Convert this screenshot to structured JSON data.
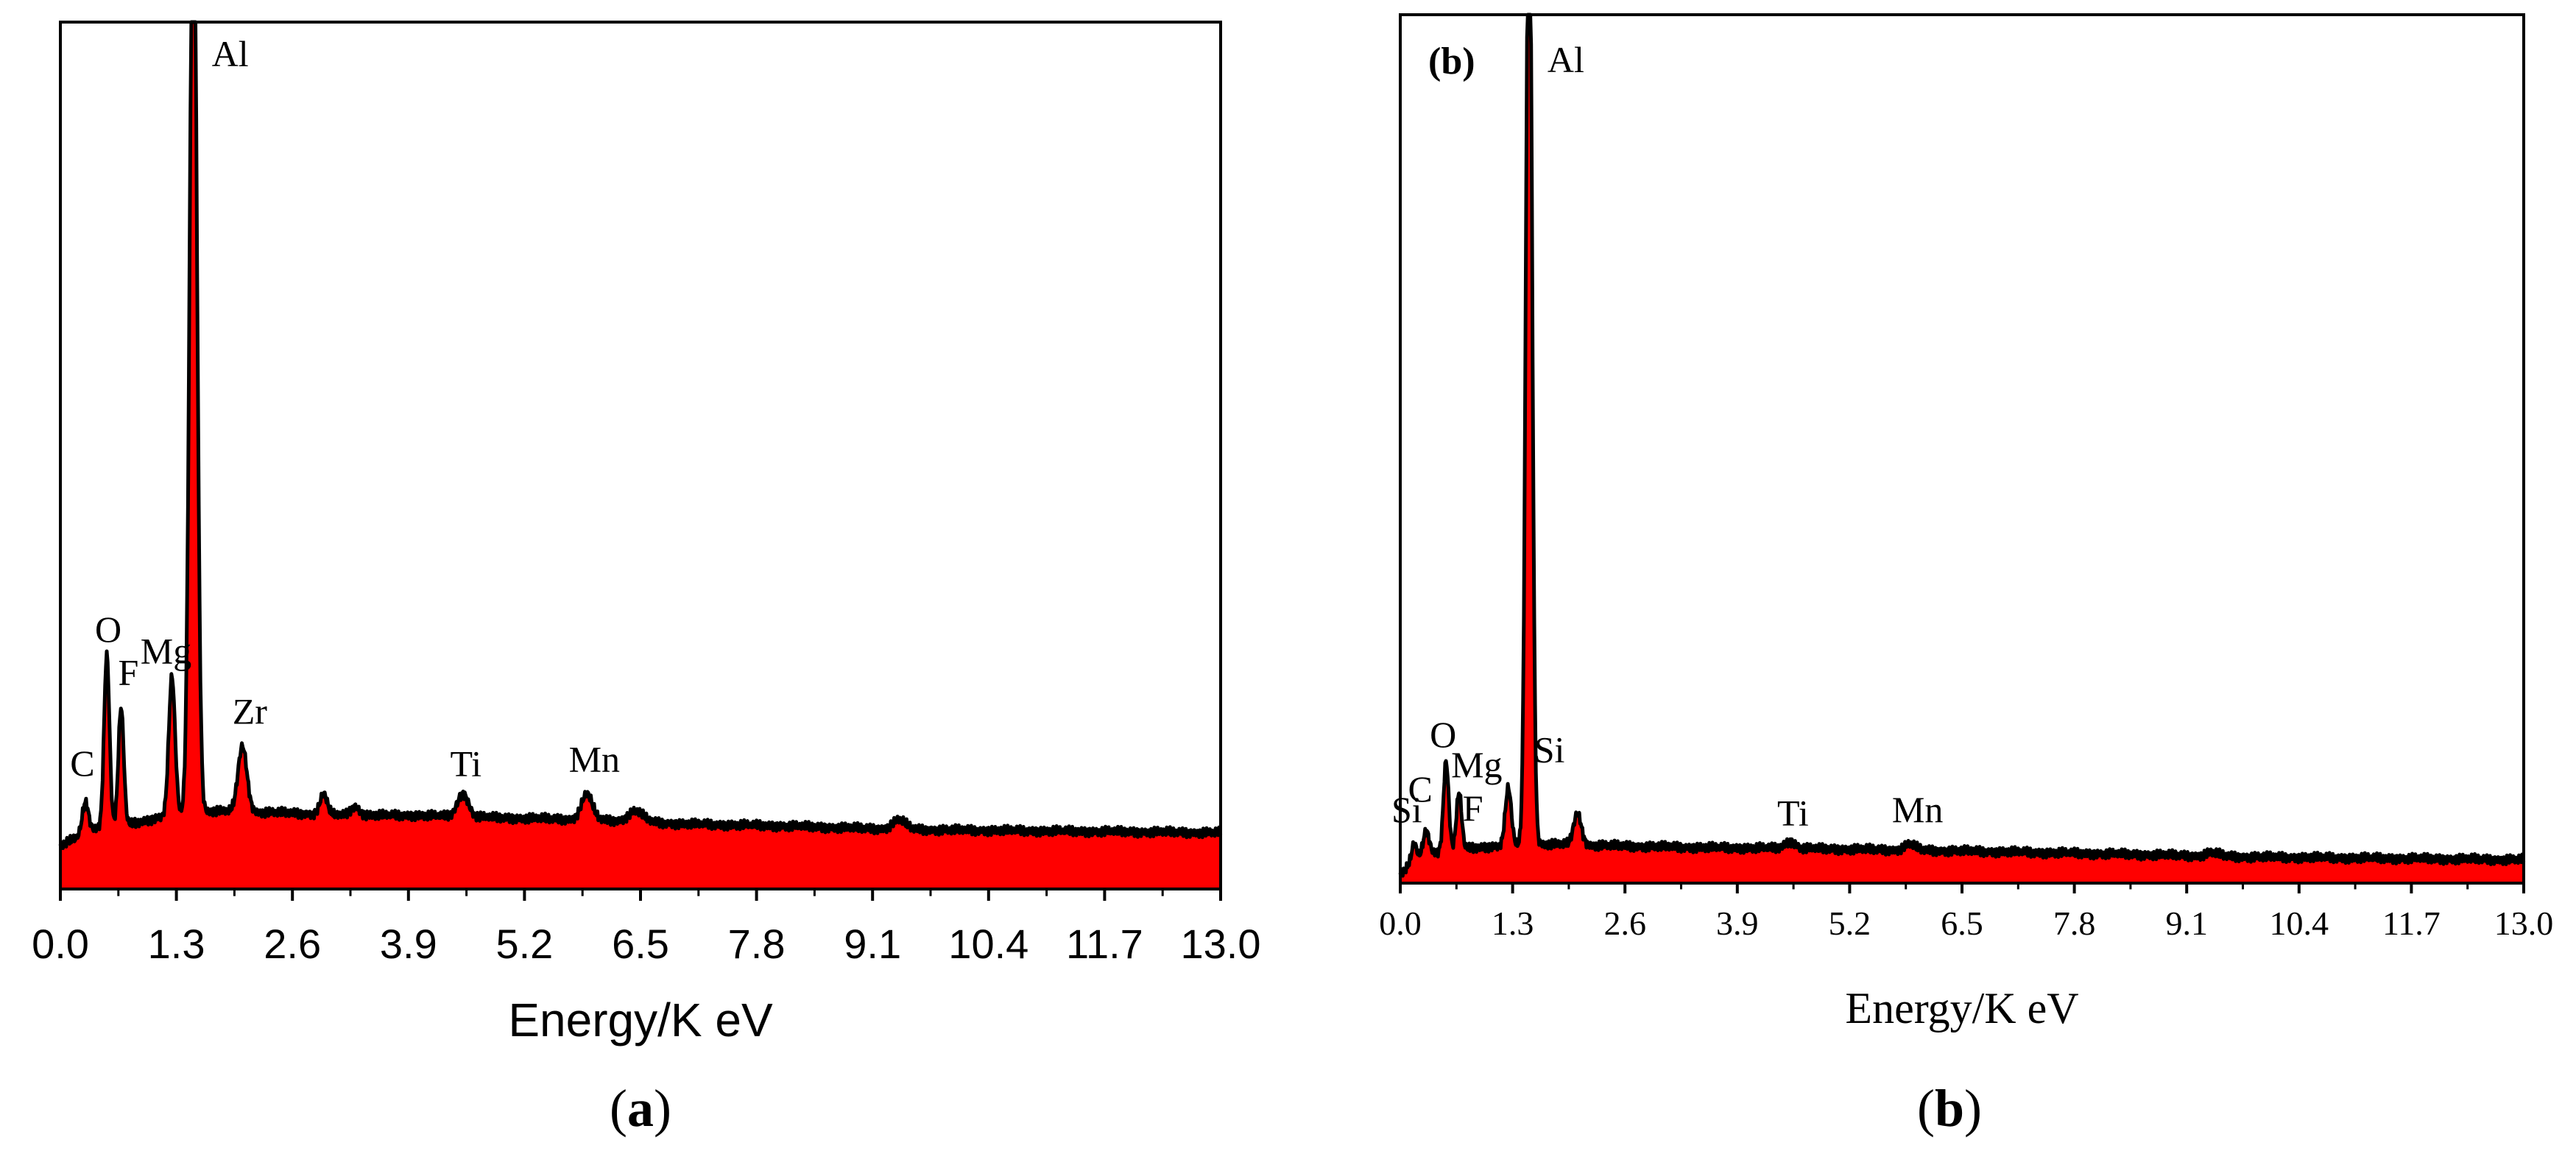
{
  "colors": {
    "fill": "#ff0000",
    "line": "#000000",
    "background": "#ffffff"
  },
  "chart_data": [
    {
      "id": "a",
      "type": "area",
      "xlabel": "Energy/K eV",
      "ylabel": "",
      "xlim": [
        0,
        13
      ],
      "ylim": [
        0,
        100
      ],
      "xticks": [
        "0.0",
        "1.3",
        "2.6",
        "3.9",
        "5.2",
        "6.5",
        "7.8",
        "9.1",
        "10.4",
        "11.7",
        "13.0"
      ],
      "caption_label": "a",
      "caption_open": "(",
      "caption_close": ")",
      "baseline": [
        [
          0,
          5
        ],
        [
          0.2,
          6
        ],
        [
          0.4,
          7
        ],
        [
          0.8,
          7.5
        ],
        [
          1.0,
          8
        ],
        [
          1.2,
          8.5
        ],
        [
          1.7,
          9
        ],
        [
          2.5,
          8.8
        ],
        [
          3.2,
          8.5
        ],
        [
          4.0,
          8.5
        ],
        [
          5.0,
          8.2
        ],
        [
          6.0,
          8
        ],
        [
          7.0,
          7.5
        ],
        [
          8.0,
          7.3
        ],
        [
          9.0,
          7
        ],
        [
          10.0,
          6.8
        ],
        [
          11.0,
          6.7
        ],
        [
          12.0,
          6.6
        ],
        [
          13.0,
          6.5
        ]
      ],
      "peaks": [
        {
          "label": "C",
          "x": 0.28,
          "y": 10,
          "w": 0.035
        },
        {
          "label": "O",
          "x": 0.52,
          "y": 27,
          "w": 0.03
        },
        {
          "label": "F",
          "x": 0.68,
          "y": 21,
          "w": 0.03
        },
        {
          "label": "Mg",
          "x": 1.25,
          "y": 24.5,
          "w": 0.035
        },
        {
          "label": "Al",
          "x": 1.49,
          "y": 120,
          "w": 0.04
        },
        {
          "label": "Zr",
          "x": 2.04,
          "y": 16.5,
          "w": 0.05
        },
        {
          "label": "",
          "x": 2.95,
          "y": 11,
          "w": 0.04
        },
        {
          "label": "",
          "x": 3.3,
          "y": 9.5,
          "w": 0.05
        },
        {
          "label": "Ti",
          "x": 4.51,
          "y": 11,
          "w": 0.06
        },
        {
          "label": "Mn",
          "x": 5.9,
          "y": 11,
          "w": 0.06
        },
        {
          "label": "",
          "x": 6.45,
          "y": 9,
          "w": 0.08
        },
        {
          "label": "",
          "x": 9.4,
          "y": 8,
          "w": 0.07
        }
      ]
    },
    {
      "id": "b",
      "type": "area",
      "title": "(b)",
      "xlabel": "Energy/K eV",
      "ylabel": "",
      "xlim": [
        0,
        13
      ],
      "ylim": [
        0,
        100
      ],
      "xticks": [
        "0.0",
        "1.3",
        "2.6",
        "3.9",
        "5.2",
        "6.5",
        "7.8",
        "9.1",
        "10.4",
        "11.7",
        "13.0"
      ],
      "caption_label": "b",
      "caption_open": "(",
      "caption_close": ")",
      "baseline": [
        [
          0,
          1
        ],
        [
          0.1,
          2
        ],
        [
          0.25,
          3
        ],
        [
          0.4,
          3.5
        ],
        [
          0.8,
          4
        ],
        [
          1.0,
          4.2
        ],
        [
          1.7,
          4.5
        ],
        [
          2.5,
          4.3
        ],
        [
          3.5,
          4.1
        ],
        [
          4.5,
          4
        ],
        [
          6.0,
          3.8
        ],
        [
          7.0,
          3.6
        ],
        [
          8.0,
          3.4
        ],
        [
          9.0,
          3.2
        ],
        [
          10.0,
          3
        ],
        [
          11.0,
          2.9
        ],
        [
          12.0,
          2.8
        ],
        [
          13.0,
          2.7
        ]
      ],
      "peaks": [
        {
          "label": "Si",
          "x": 0.16,
          "y": 4.5,
          "w": 0.03
        },
        {
          "label": "C",
          "x": 0.3,
          "y": 6,
          "w": 0.035
        },
        {
          "label": "O",
          "x": 0.53,
          "y": 14,
          "w": 0.03
        },
        {
          "label": "Mg",
          "x": 0.68,
          "y": 10.5,
          "w": 0.03
        },
        {
          "label": "F",
          "x": 1.25,
          "y": 11,
          "w": 0.035
        },
        {
          "label": "Al",
          "x": 1.49,
          "y": 120,
          "w": 0.035
        },
        {
          "label": "Si",
          "x": 2.05,
          "y": 8,
          "w": 0.045
        },
        {
          "label": "",
          "x": 2.95,
          "y": 4.2,
          "w": 0.04
        },
        {
          "label": "Ti",
          "x": 4.51,
          "y": 4.8,
          "w": 0.06
        },
        {
          "label": "Mn",
          "x": 5.9,
          "y": 4.5,
          "w": 0.06
        },
        {
          "label": "",
          "x": 9.4,
          "y": 3.5,
          "w": 0.07
        }
      ]
    }
  ]
}
